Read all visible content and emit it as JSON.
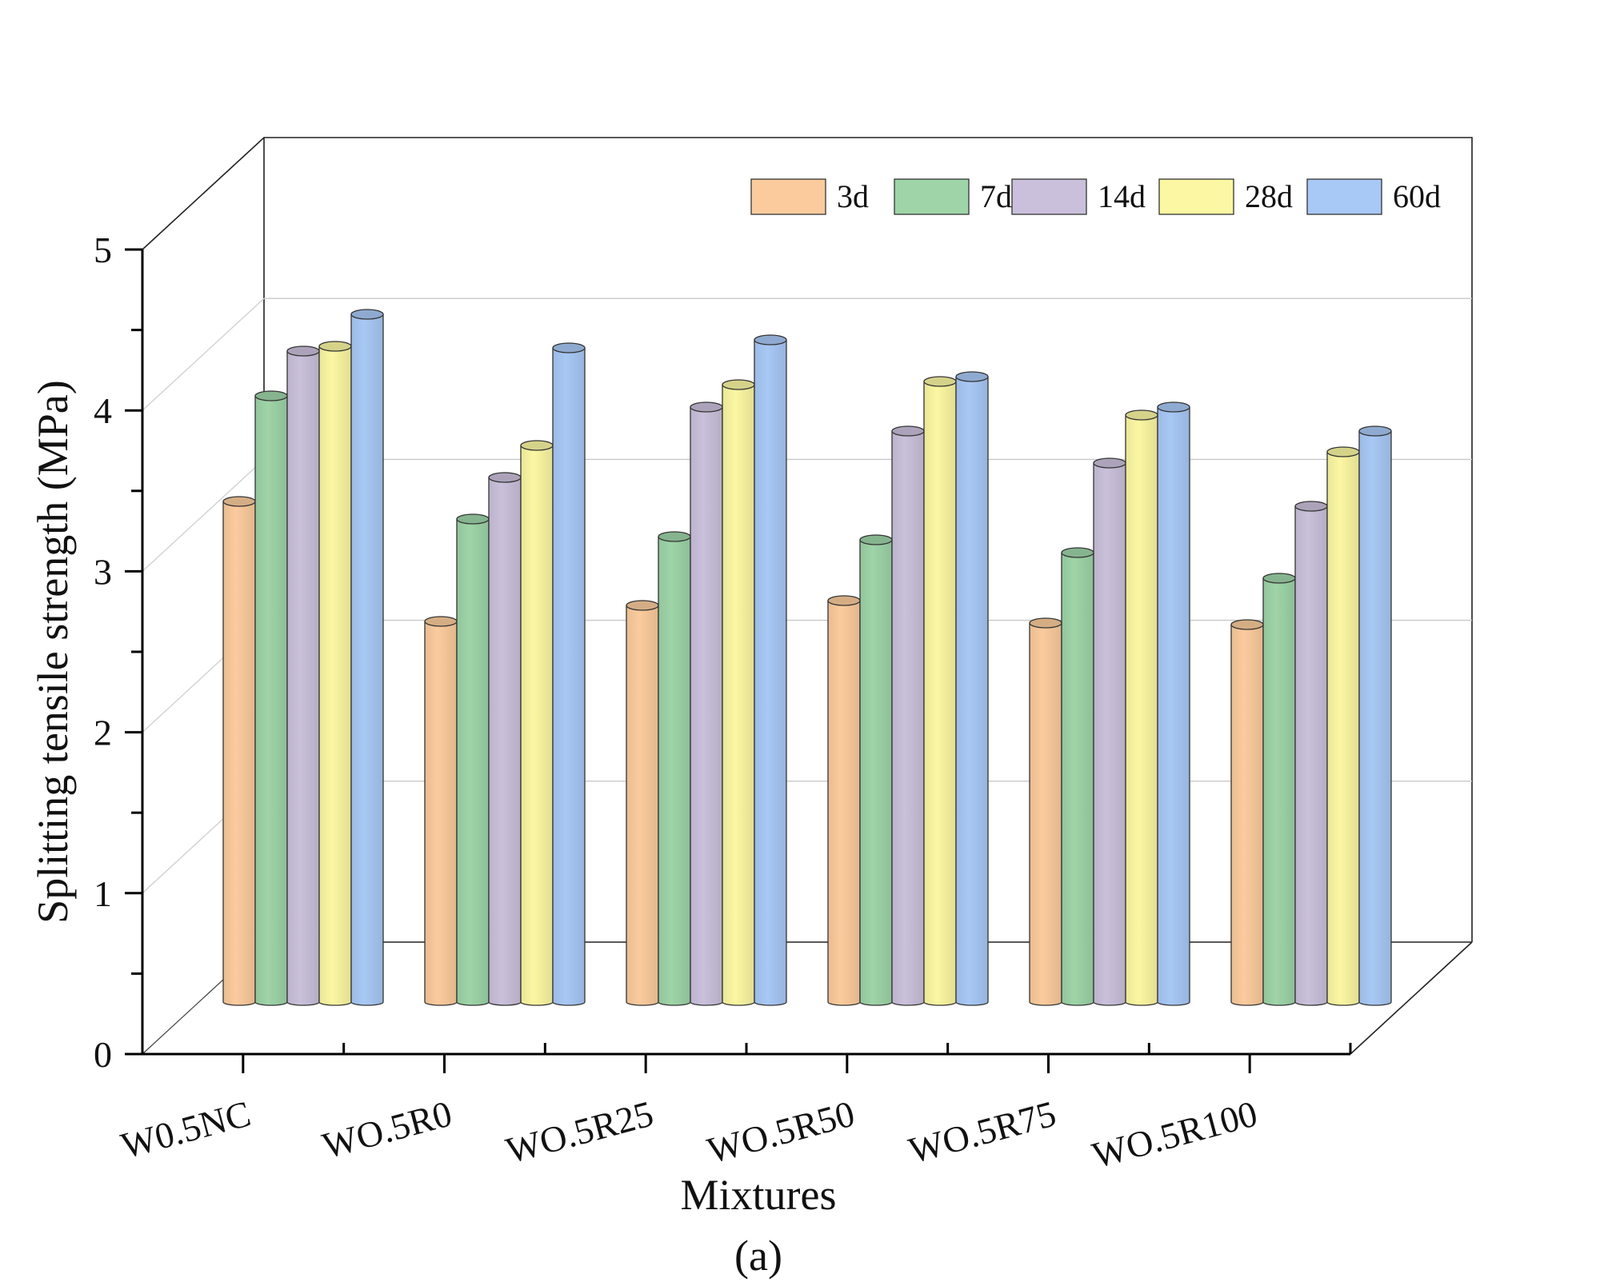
{
  "chart_data": {
    "type": "bar",
    "title": "",
    "xlabel": "Mixtures",
    "ylabel": "Splitting tensile strength (MPa)",
    "caption": "(a)",
    "ylim": [
      0,
      5
    ],
    "yticks": [
      "0",
      "1",
      "2",
      "3",
      "4",
      "5"
    ],
    "categories": [
      "W0.5NC",
      "WO.5R0",
      "WO.5R25",
      "WO.5R50",
      "WO.5R75",
      "WO.5R100"
    ],
    "legend_position": "top-right",
    "series": [
      {
        "name": "3d",
        "color": "#FBCB9D",
        "values": [
          3.13,
          2.38,
          2.48,
          2.51,
          2.37,
          2.36
        ]
      },
      {
        "name": "7d",
        "color": "#9ED4A8",
        "values": [
          3.79,
          3.02,
          2.91,
          2.89,
          2.81,
          2.65
        ]
      },
      {
        "name": "14d",
        "color": "#CAC0DB",
        "values": [
          4.07,
          3.28,
          3.72,
          3.57,
          3.37,
          3.1
        ]
      },
      {
        "name": "28d",
        "color": "#FBF7A2",
        "values": [
          4.1,
          3.48,
          3.86,
          3.88,
          3.67,
          3.44
        ]
      },
      {
        "name": "60d",
        "color": "#A8C8F5",
        "values": [
          4.3,
          4.09,
          4.14,
          3.91,
          3.72,
          3.57
        ]
      }
    ]
  }
}
